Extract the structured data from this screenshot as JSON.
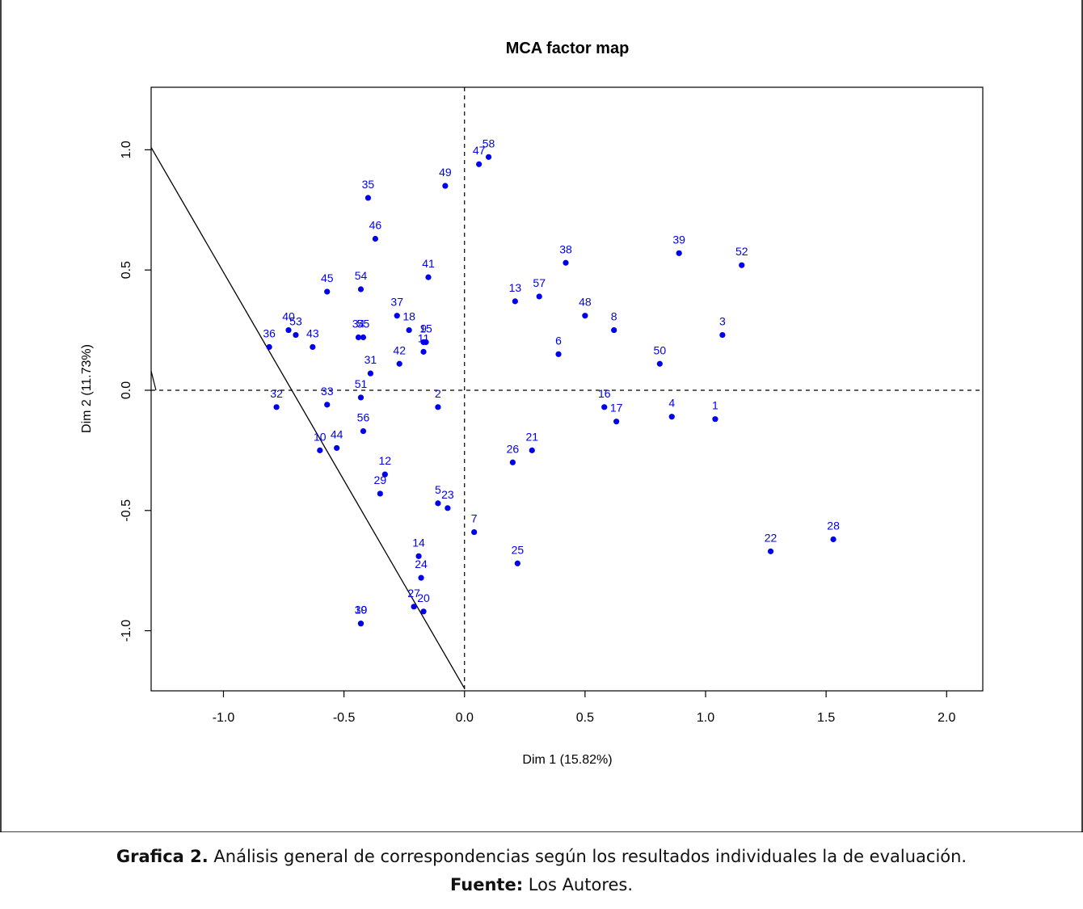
{
  "chart_data": {
    "type": "scatter",
    "title": "MCA factor map",
    "xlabel": "Dim 1 (15.82%)",
    "ylabel": "Dim 2 (11.73%)",
    "xlim": [
      -1.3,
      2.15
    ],
    "ylim": [
      -1.25,
      1.26
    ],
    "xticks": [
      -1.0,
      -0.5,
      0.0,
      0.5,
      1.0,
      1.5,
      2.0
    ],
    "yticks": [
      -1.0,
      -0.5,
      0.0,
      0.5,
      1.0
    ],
    "xtick_labels": [
      "-1.0",
      "-0.5",
      "0.0",
      "0.5",
      "1.0",
      "1.5",
      "2.0"
    ],
    "ytick_labels": [
      "-1.0",
      "-0.5",
      "0.0",
      "0.5",
      "1.0"
    ],
    "grid": false,
    "reference_lines": {
      "x": 0,
      "y": 0,
      "style": "dashed"
    },
    "diagonal_line": {
      "from": [
        -1.3,
        1.01
      ],
      "to": [
        0.0,
        -1.24
      ]
    },
    "point_color": "#0000ee",
    "points": [
      {
        "label": "1",
        "x": 1.04,
        "y": -0.12
      },
      {
        "label": "2",
        "x": -0.11,
        "y": -0.07
      },
      {
        "label": "3",
        "x": 1.07,
        "y": 0.23
      },
      {
        "label": "4",
        "x": 0.86,
        "y": -0.11
      },
      {
        "label": "5",
        "x": -0.11,
        "y": -0.47
      },
      {
        "label": "6",
        "x": 0.39,
        "y": 0.15
      },
      {
        "label": "7",
        "x": 0.04,
        "y": -0.59
      },
      {
        "label": "8",
        "x": 0.62,
        "y": 0.25
      },
      {
        "label": "9",
        "x": -0.17,
        "y": 0.2
      },
      {
        "label": "10",
        "x": -0.6,
        "y": -0.25
      },
      {
        "label": "11",
        "x": -0.17,
        "y": 0.16
      },
      {
        "label": "12",
        "x": -0.33,
        "y": -0.35
      },
      {
        "label": "13",
        "x": 0.21,
        "y": 0.37
      },
      {
        "label": "14",
        "x": -0.19,
        "y": -0.69
      },
      {
        "label": "15",
        "x": -0.16,
        "y": 0.2
      },
      {
        "label": "16",
        "x": 0.58,
        "y": -0.07
      },
      {
        "label": "17",
        "x": 0.63,
        "y": -0.13
      },
      {
        "label": "18",
        "x": -0.23,
        "y": 0.25
      },
      {
        "label": "19",
        "x": -0.43,
        "y": -0.97
      },
      {
        "label": "20",
        "x": -0.17,
        "y": -0.92
      },
      {
        "label": "21",
        "x": 0.28,
        "y": -0.25
      },
      {
        "label": "22",
        "x": 1.27,
        "y": -0.67
      },
      {
        "label": "23",
        "x": -0.07,
        "y": -0.49
      },
      {
        "label": "24",
        "x": -0.18,
        "y": -0.78
      },
      {
        "label": "25",
        "x": 0.22,
        "y": -0.72
      },
      {
        "label": "26",
        "x": 0.2,
        "y": -0.3
      },
      {
        "label": "27",
        "x": -0.21,
        "y": -0.9
      },
      {
        "label": "28",
        "x": 1.53,
        "y": -0.62
      },
      {
        "label": "29",
        "x": -0.35,
        "y": -0.43
      },
      {
        "label": "30",
        "x": -0.43,
        "y": -0.97
      },
      {
        "label": "31",
        "x": -0.39,
        "y": 0.07
      },
      {
        "label": "32",
        "x": -0.78,
        "y": -0.07
      },
      {
        "label": "33",
        "x": -0.57,
        "y": -0.06
      },
      {
        "label": "34",
        "x": -0.44,
        "y": 0.22
      },
      {
        "label": "35",
        "x": -0.4,
        "y": 0.8
      },
      {
        "label": "36",
        "x": -0.81,
        "y": 0.18
      },
      {
        "label": "37",
        "x": -0.28,
        "y": 0.31
      },
      {
        "label": "38",
        "x": 0.42,
        "y": 0.53
      },
      {
        "label": "39",
        "x": 0.89,
        "y": 0.57
      },
      {
        "label": "40",
        "x": -0.73,
        "y": 0.25
      },
      {
        "label": "41",
        "x": -0.15,
        "y": 0.47
      },
      {
        "label": "42",
        "x": -0.27,
        "y": 0.11
      },
      {
        "label": "43",
        "x": -0.63,
        "y": 0.18
      },
      {
        "label": "44",
        "x": -0.53,
        "y": -0.24
      },
      {
        "label": "45",
        "x": -0.57,
        "y": 0.41
      },
      {
        "label": "46",
        "x": -0.37,
        "y": 0.63
      },
      {
        "label": "47",
        "x": 0.06,
        "y": 0.94
      },
      {
        "label": "48",
        "x": 0.5,
        "y": 0.31
      },
      {
        "label": "49",
        "x": -0.08,
        "y": 0.85
      },
      {
        "label": "50",
        "x": 0.81,
        "y": 0.11
      },
      {
        "label": "51",
        "x": -0.43,
        "y": -0.03
      },
      {
        "label": "52",
        "x": 1.15,
        "y": 0.52
      },
      {
        "label": "53",
        "x": -0.7,
        "y": 0.23
      },
      {
        "label": "54",
        "x": -0.43,
        "y": 0.42
      },
      {
        "label": "55",
        "x": -0.42,
        "y": 0.22
      },
      {
        "label": "56",
        "x": -0.42,
        "y": -0.17
      },
      {
        "label": "57",
        "x": 0.31,
        "y": 0.39
      },
      {
        "label": "58",
        "x": 0.1,
        "y": 0.97
      }
    ]
  },
  "caption": {
    "line1_bold": "Grafica 2.",
    "line1_text": " Análisis general de correspondencias según los resultados individuales la de evaluación.",
    "line2_bold": "Fuente:",
    "line2_text": " Los Autores."
  }
}
